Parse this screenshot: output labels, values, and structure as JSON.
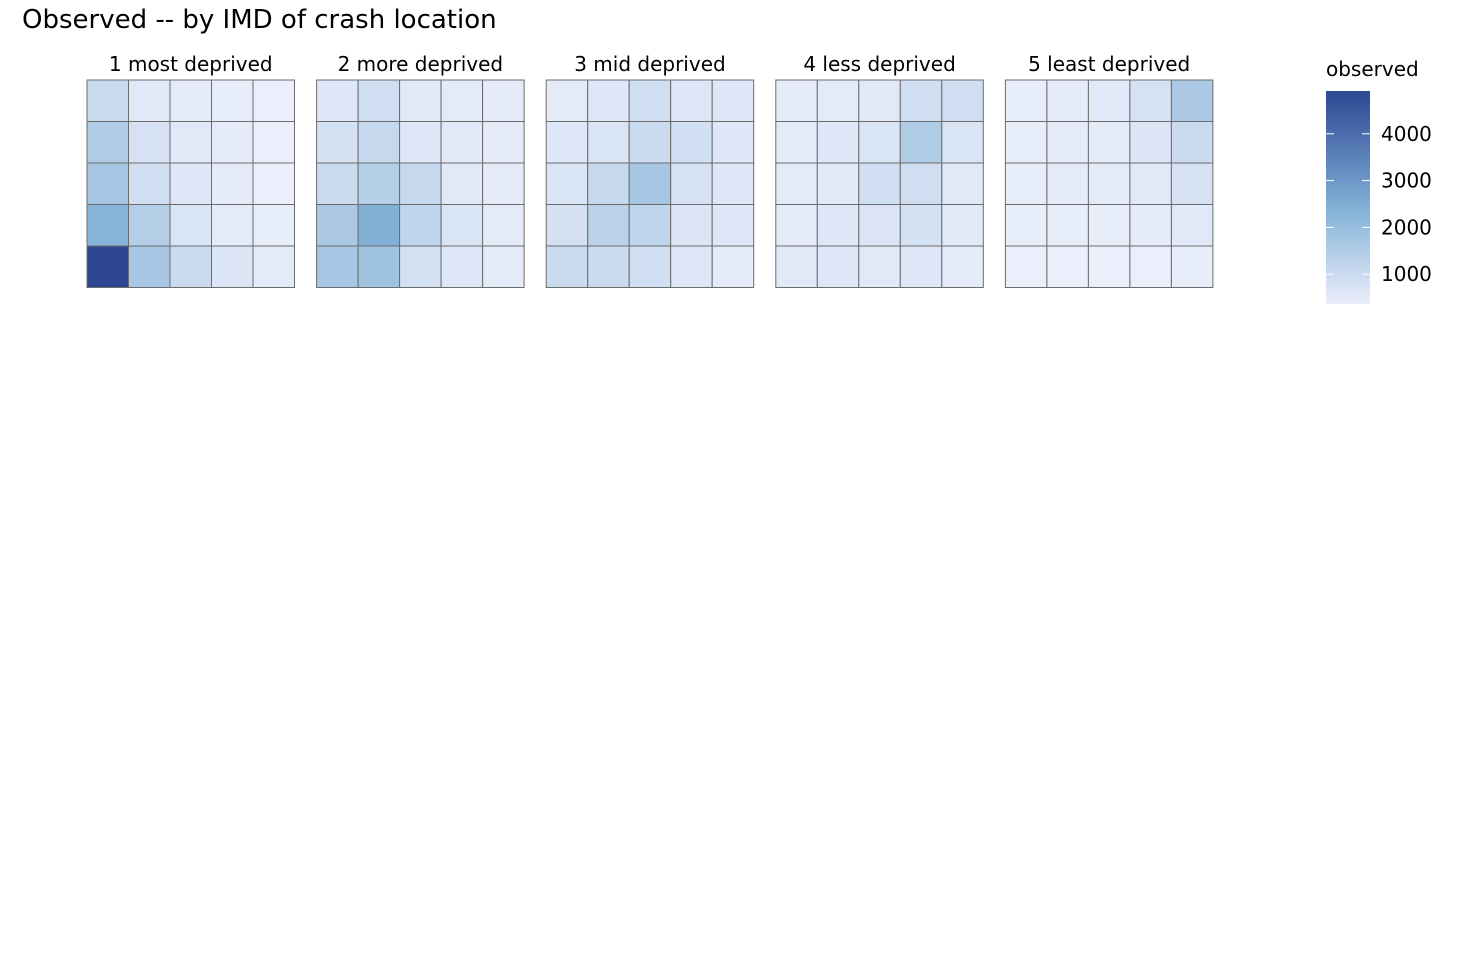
{
  "chart_data": {
    "type": "heatmap",
    "title": "Observed -- by IMD of crash location",
    "xlabel": "",
    "ylabel": "",
    "panels": [
      {
        "label": "1 most deprived",
        "values": [
          [
            800,
            350,
            250,
            200,
            150
          ],
          [
            1300,
            550,
            350,
            250,
            150
          ],
          [
            1500,
            650,
            400,
            250,
            150
          ],
          [
            2100,
            1200,
            500,
            300,
            200
          ],
          [
            4700,
            1500,
            800,
            450,
            300
          ]
        ]
      },
      {
        "label": "2 more deprived",
        "values": [
          [
            400,
            700,
            350,
            300,
            250
          ],
          [
            600,
            900,
            400,
            350,
            250
          ],
          [
            800,
            1200,
            900,
            350,
            250
          ],
          [
            1400,
            2200,
            1000,
            500,
            300
          ],
          [
            1500,
            1600,
            600,
            400,
            300
          ]
        ]
      },
      {
        "label": "3 mid deprived",
        "values": [
          [
            300,
            400,
            700,
            400,
            400
          ],
          [
            400,
            500,
            800,
            650,
            400
          ],
          [
            500,
            850,
            1500,
            550,
            400
          ],
          [
            600,
            1100,
            1000,
            450,
            400
          ],
          [
            800,
            800,
            650,
            400,
            250
          ]
        ]
      },
      {
        "label": "4 less deprived",
        "values": [
          [
            250,
            300,
            350,
            700,
            700
          ],
          [
            300,
            400,
            500,
            1300,
            500
          ],
          [
            300,
            350,
            650,
            700,
            350
          ],
          [
            250,
            400,
            450,
            600,
            350
          ],
          [
            350,
            400,
            350,
            400,
            250
          ]
        ]
      },
      {
        "label": "5 least deprived",
        "values": [
          [
            200,
            250,
            350,
            550,
            1400
          ],
          [
            200,
            250,
            300,
            450,
            800
          ],
          [
            200,
            250,
            300,
            350,
            550
          ],
          [
            200,
            200,
            200,
            250,
            350
          ],
          [
            150,
            150,
            150,
            150,
            200
          ]
        ]
      }
    ],
    "color_scale": {
      "title": "observed",
      "low_color": "#ebeefb",
      "high_color": "#2c4693",
      "min": 150,
      "max": 4700,
      "ticks": [
        1000,
        2000,
        3000,
        4000
      ],
      "tick_labels": [
        "1000",
        "2000",
        "3000",
        "4000"
      ]
    },
    "grid": false,
    "legend_position": "right"
  }
}
